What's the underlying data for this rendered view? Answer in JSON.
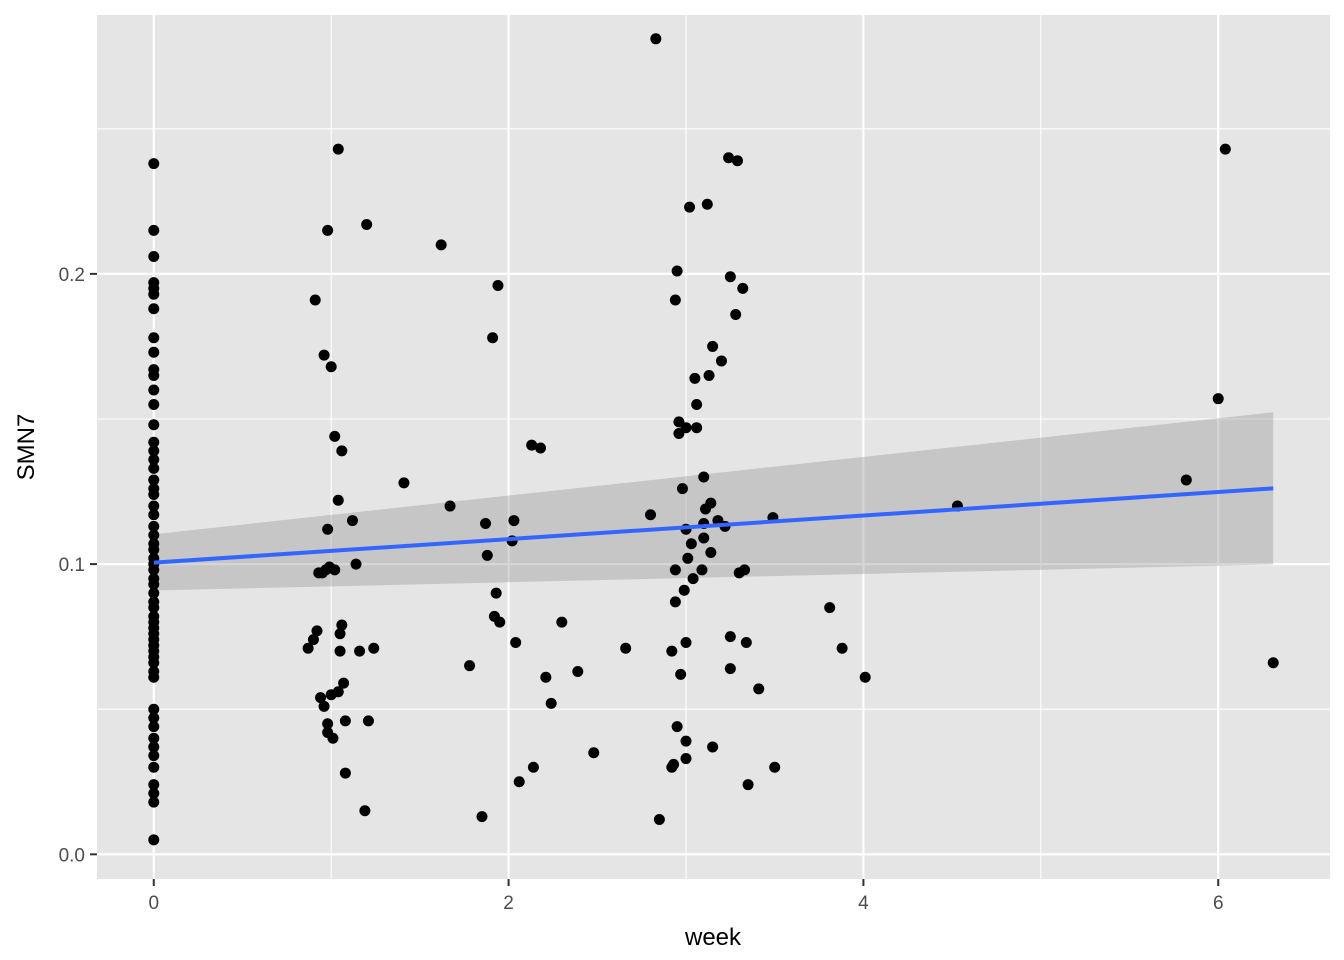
{
  "chart_data": {
    "type": "scatter",
    "title": "",
    "xlabel": "week",
    "ylabel": "SMN7",
    "xlim": [
      -0.32,
      6.63
    ],
    "ylim": [
      -0.0085,
      0.2892
    ],
    "x_ticks": [
      0,
      2,
      4,
      6
    ],
    "x_tick_labels": [
      "0",
      "2",
      "4",
      "6"
    ],
    "y_ticks": [
      0.0,
      0.1,
      0.2
    ],
    "y_tick_labels": [
      "0.0",
      "0.1",
      "0.2"
    ],
    "x_minor_breaks": [
      1,
      3,
      5
    ],
    "y_minor_breaks": [
      0.05,
      0.15,
      0.25
    ],
    "grid": true,
    "legend": "none",
    "colors": {
      "panel": "#e5e5e5",
      "grid": "#ffffff",
      "points": "#000000",
      "fit_line": "#3366ff",
      "ribbon": "#999999",
      "tick_text": "#4d4d4d"
    },
    "points": [
      {
        "x": 0,
        "y": 0.238
      },
      {
        "x": 0,
        "y": 0.215
      },
      {
        "x": 0,
        "y": 0.206
      },
      {
        "x": 0,
        "y": 0.197
      },
      {
        "x": 0,
        "y": 0.195
      },
      {
        "x": 0,
        "y": 0.193
      },
      {
        "x": 0,
        "y": 0.188
      },
      {
        "x": 0,
        "y": 0.178
      },
      {
        "x": 0,
        "y": 0.173
      },
      {
        "x": 0,
        "y": 0.167
      },
      {
        "x": 0,
        "y": 0.165
      },
      {
        "x": 0,
        "y": 0.16
      },
      {
        "x": 0,
        "y": 0.155
      },
      {
        "x": 0,
        "y": 0.148
      },
      {
        "x": 0,
        "y": 0.142
      },
      {
        "x": 0,
        "y": 0.139
      },
      {
        "x": 0,
        "y": 0.136
      },
      {
        "x": 0,
        "y": 0.133
      },
      {
        "x": 0,
        "y": 0.129
      },
      {
        "x": 0,
        "y": 0.126
      },
      {
        "x": 0,
        "y": 0.124
      },
      {
        "x": 0,
        "y": 0.12
      },
      {
        "x": 0,
        "y": 0.117
      },
      {
        "x": 0,
        "y": 0.113
      },
      {
        "x": 0,
        "y": 0.11
      },
      {
        "x": 0,
        "y": 0.107
      },
      {
        "x": 0,
        "y": 0.105
      },
      {
        "x": 0,
        "y": 0.102
      },
      {
        "x": 0,
        "y": 0.1
      },
      {
        "x": 0,
        "y": 0.098
      },
      {
        "x": 0,
        "y": 0.095
      },
      {
        "x": 0,
        "y": 0.093
      },
      {
        "x": 0,
        "y": 0.09
      },
      {
        "x": 0,
        "y": 0.087
      },
      {
        "x": 0,
        "y": 0.085
      },
      {
        "x": 0,
        "y": 0.082
      },
      {
        "x": 0,
        "y": 0.08
      },
      {
        "x": 0,
        "y": 0.078
      },
      {
        "x": 0,
        "y": 0.076
      },
      {
        "x": 0,
        "y": 0.074
      },
      {
        "x": 0,
        "y": 0.072
      },
      {
        "x": 0,
        "y": 0.07
      },
      {
        "x": 0,
        "y": 0.068
      },
      {
        "x": 0,
        "y": 0.066
      },
      {
        "x": 0,
        "y": 0.063
      },
      {
        "x": 0,
        "y": 0.061
      },
      {
        "x": 0,
        "y": 0.05
      },
      {
        "x": 0,
        "y": 0.047
      },
      {
        "x": 0,
        "y": 0.044
      },
      {
        "x": 0,
        "y": 0.04
      },
      {
        "x": 0,
        "y": 0.037
      },
      {
        "x": 0,
        "y": 0.034
      },
      {
        "x": 0,
        "y": 0.03
      },
      {
        "x": 0,
        "y": 0.024
      },
      {
        "x": 0,
        "y": 0.021
      },
      {
        "x": 0,
        "y": 0.018
      },
      {
        "x": 0,
        "y": 0.005
      },
      {
        "x": 0.87,
        "y": 0.071
      },
      {
        "x": 0.9,
        "y": 0.074
      },
      {
        "x": 0.91,
        "y": 0.191
      },
      {
        "x": 0.92,
        "y": 0.077
      },
      {
        "x": 0.93,
        "y": 0.097
      },
      {
        "x": 0.94,
        "y": 0.054
      },
      {
        "x": 0.95,
        "y": 0.097
      },
      {
        "x": 0.96,
        "y": 0.051
      },
      {
        "x": 0.96,
        "y": 0.172
      },
      {
        "x": 0.97,
        "y": 0.098
      },
      {
        "x": 0.98,
        "y": 0.112
      },
      {
        "x": 0.98,
        "y": 0.045
      },
      {
        "x": 0.98,
        "y": 0.042
      },
      {
        "x": 0.98,
        "y": 0.215
      },
      {
        "x": 0.99,
        "y": 0.099
      },
      {
        "x": 1.0,
        "y": 0.168
      },
      {
        "x": 1.0,
        "y": 0.055
      },
      {
        "x": 1.01,
        "y": 0.04
      },
      {
        "x": 1.02,
        "y": 0.144
      },
      {
        "x": 1.02,
        "y": 0.098
      },
      {
        "x": 1.04,
        "y": 0.243
      },
      {
        "x": 1.04,
        "y": 0.122
      },
      {
        "x": 1.04,
        "y": 0.056
      },
      {
        "x": 1.05,
        "y": 0.076
      },
      {
        "x": 1.05,
        "y": 0.07
      },
      {
        "x": 1.06,
        "y": 0.139
      },
      {
        "x": 1.06,
        "y": 0.079
      },
      {
        "x": 1.07,
        "y": 0.059
      },
      {
        "x": 1.08,
        "y": 0.046
      },
      {
        "x": 1.08,
        "y": 0.028
      },
      {
        "x": 1.12,
        "y": 0.115
      },
      {
        "x": 1.14,
        "y": 0.1
      },
      {
        "x": 1.16,
        "y": 0.07
      },
      {
        "x": 1.19,
        "y": 0.015
      },
      {
        "x": 1.2,
        "y": 0.217
      },
      {
        "x": 1.21,
        "y": 0.046
      },
      {
        "x": 1.24,
        "y": 0.071
      },
      {
        "x": 1.41,
        "y": 0.128
      },
      {
        "x": 1.62,
        "y": 0.21
      },
      {
        "x": 1.67,
        "y": 0.12
      },
      {
        "x": 1.78,
        "y": 0.065
      },
      {
        "x": 1.85,
        "y": 0.013
      },
      {
        "x": 1.87,
        "y": 0.114
      },
      {
        "x": 1.88,
        "y": 0.103
      },
      {
        "x": 1.91,
        "y": 0.178
      },
      {
        "x": 1.92,
        "y": 0.082
      },
      {
        "x": 1.93,
        "y": 0.09
      },
      {
        "x": 1.94,
        "y": 0.196
      },
      {
        "x": 1.95,
        "y": 0.08
      },
      {
        "x": 2.02,
        "y": 0.108
      },
      {
        "x": 2.03,
        "y": 0.115
      },
      {
        "x": 2.04,
        "y": 0.073
      },
      {
        "x": 2.06,
        "y": 0.025
      },
      {
        "x": 2.13,
        "y": 0.141
      },
      {
        "x": 2.14,
        "y": 0.03
      },
      {
        "x": 2.18,
        "y": 0.14
      },
      {
        "x": 2.21,
        "y": 0.061
      },
      {
        "x": 2.24,
        "y": 0.052
      },
      {
        "x": 2.3,
        "y": 0.08
      },
      {
        "x": 2.39,
        "y": 0.063
      },
      {
        "x": 2.48,
        "y": 0.035
      },
      {
        "x": 2.66,
        "y": 0.071
      },
      {
        "x": 2.8,
        "y": 0.117
      },
      {
        "x": 2.83,
        "y": 0.281
      },
      {
        "x": 2.85,
        "y": 0.012
      },
      {
        "x": 2.92,
        "y": 0.07
      },
      {
        "x": 2.92,
        "y": 0.03
      },
      {
        "x": 2.93,
        "y": 0.031
      },
      {
        "x": 2.94,
        "y": 0.098
      },
      {
        "x": 2.94,
        "y": 0.087
      },
      {
        "x": 2.94,
        "y": 0.191
      },
      {
        "x": 2.95,
        "y": 0.201
      },
      {
        "x": 2.95,
        "y": 0.044
      },
      {
        "x": 2.96,
        "y": 0.149
      },
      {
        "x": 2.96,
        "y": 0.145
      },
      {
        "x": 2.97,
        "y": 0.062
      },
      {
        "x": 2.98,
        "y": 0.126
      },
      {
        "x": 2.99,
        "y": 0.091
      },
      {
        "x": 3.0,
        "y": 0.073
      },
      {
        "x": 3.0,
        "y": 0.039
      },
      {
        "x": 3.0,
        "y": 0.033
      },
      {
        "x": 3.0,
        "y": 0.112
      },
      {
        "x": 3.0,
        "y": 0.147
      },
      {
        "x": 3.01,
        "y": 0.102
      },
      {
        "x": 3.02,
        "y": 0.223
      },
      {
        "x": 3.03,
        "y": 0.107
      },
      {
        "x": 3.04,
        "y": 0.095
      },
      {
        "x": 3.05,
        "y": 0.164
      },
      {
        "x": 3.06,
        "y": 0.147
      },
      {
        "x": 3.06,
        "y": 0.155
      },
      {
        "x": 3.09,
        "y": 0.098
      },
      {
        "x": 3.1,
        "y": 0.13
      },
      {
        "x": 3.1,
        "y": 0.114
      },
      {
        "x": 3.1,
        "y": 0.109
      },
      {
        "x": 3.11,
        "y": 0.119
      },
      {
        "x": 3.12,
        "y": 0.224
      },
      {
        "x": 3.13,
        "y": 0.165
      },
      {
        "x": 3.14,
        "y": 0.121
      },
      {
        "x": 3.14,
        "y": 0.104
      },
      {
        "x": 3.15,
        "y": 0.175
      },
      {
        "x": 3.15,
        "y": 0.037
      },
      {
        "x": 3.18,
        "y": 0.115
      },
      {
        "x": 3.2,
        "y": 0.17
      },
      {
        "x": 3.22,
        "y": 0.113
      },
      {
        "x": 3.24,
        "y": 0.24
      },
      {
        "x": 3.25,
        "y": 0.075
      },
      {
        "x": 3.25,
        "y": 0.064
      },
      {
        "x": 3.25,
        "y": 0.199
      },
      {
        "x": 3.28,
        "y": 0.186
      },
      {
        "x": 3.29,
        "y": 0.239
      },
      {
        "x": 3.3,
        "y": 0.097
      },
      {
        "x": 3.32,
        "y": 0.195
      },
      {
        "x": 3.33,
        "y": 0.098
      },
      {
        "x": 3.34,
        "y": 0.073
      },
      {
        "x": 3.35,
        "y": 0.024
      },
      {
        "x": 3.41,
        "y": 0.057
      },
      {
        "x": 3.49,
        "y": 0.116
      },
      {
        "x": 3.5,
        "y": 0.03
      },
      {
        "x": 3.81,
        "y": 0.085
      },
      {
        "x": 3.88,
        "y": 0.071
      },
      {
        "x": 4.01,
        "y": 0.061
      },
      {
        "x": 4.53,
        "y": 0.12
      },
      {
        "x": 5.82,
        "y": 0.129
      },
      {
        "x": 6.0,
        "y": 0.157
      },
      {
        "x": 6.04,
        "y": 0.243
      },
      {
        "x": 6.31,
        "y": 0.066
      }
    ],
    "fit": {
      "method": "lm",
      "x": [
        0,
        6.31
      ],
      "y": [
        0.1005,
        0.1261
      ],
      "ci_lower": [
        0.0909,
        0.0999
      ],
      "ci_upper": [
        0.1103,
        0.1523
      ]
    }
  }
}
